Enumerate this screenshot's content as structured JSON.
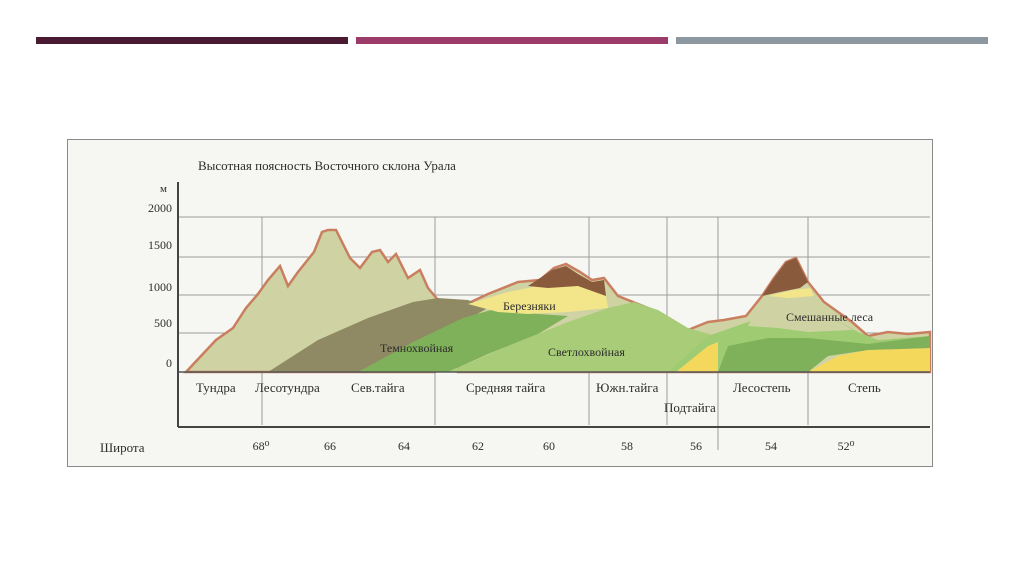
{
  "slide": {
    "accent_bars": [
      "#4a1a33",
      "#9c3a6a",
      "#8d979f"
    ]
  },
  "diagram": {
    "title": "Высотная поясность Восточного склона Урала",
    "unit": "м",
    "altitude_ticks": [
      "2000",
      "1500",
      "1000",
      "500",
      "0"
    ],
    "zones": [
      "Тундра",
      "Лесотундра",
      "Сев.тайга",
      "Средняя тайга",
      "Южн.тайга",
      "Подтайга",
      "Лесостепь",
      "Степь"
    ],
    "latitude_label": "Широта",
    "latitudes": [
      "68⁰",
      "66",
      "64",
      "62",
      "60",
      "58",
      "56",
      "54",
      "52⁰"
    ],
    "belts": {
      "dark_conifer": "Темнохвойная",
      "light_conifer": "Светлохвойная",
      "birch": "Березняки",
      "mixed": "Смешанные леса"
    },
    "colors": {
      "tundra": "#cfd3a4",
      "dark_conifer": "#8f8a63",
      "dark_conifer_green": "#7fb05a",
      "light_conifer": "#a9cc78",
      "birch": "#f3e68a",
      "steppe": "#f3d85c",
      "mountain_top": "#8a5a3c",
      "outline": "#c97f5f"
    }
  }
}
